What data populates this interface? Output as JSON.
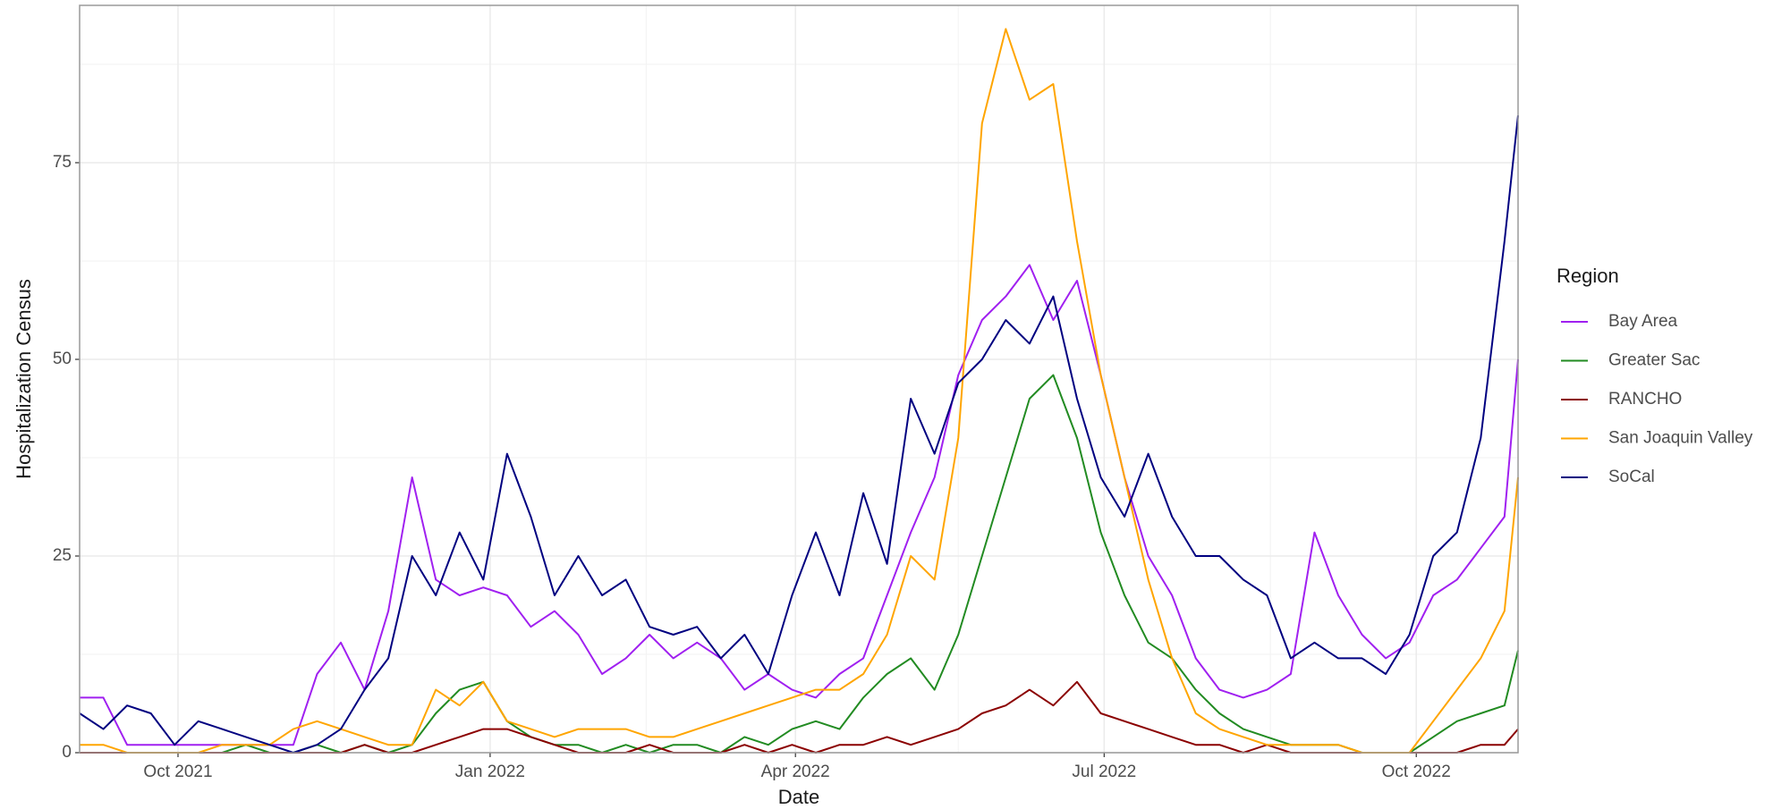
{
  "chart_data": {
    "type": "line",
    "x_label": "Date",
    "y_label": "Hospitalization Census",
    "legend_title": "Region",
    "legend": "right",
    "grid": true,
    "x": [
      "2021-09-02",
      "2021-09-09",
      "2021-09-16",
      "2021-09-23",
      "2021-09-30",
      "2021-10-07",
      "2021-10-14",
      "2021-10-21",
      "2021-10-28",
      "2021-11-04",
      "2021-11-11",
      "2021-11-18",
      "2021-11-25",
      "2021-12-02",
      "2021-12-09",
      "2021-12-16",
      "2021-12-23",
      "2021-12-30",
      "2022-01-06",
      "2022-01-13",
      "2022-01-20",
      "2022-01-27",
      "2022-02-03",
      "2022-02-10",
      "2022-02-17",
      "2022-02-24",
      "2022-03-03",
      "2022-03-10",
      "2022-03-17",
      "2022-03-24",
      "2022-03-31",
      "2022-04-07",
      "2022-04-14",
      "2022-04-21",
      "2022-04-28",
      "2022-05-05",
      "2022-05-12",
      "2022-05-19",
      "2022-05-26",
      "2022-06-02",
      "2022-06-09",
      "2022-06-16",
      "2022-06-23",
      "2022-06-30",
      "2022-07-07",
      "2022-07-14",
      "2022-07-21",
      "2022-07-28",
      "2022-08-04",
      "2022-08-11",
      "2022-08-18",
      "2022-08-25",
      "2022-09-01",
      "2022-09-08",
      "2022-09-15",
      "2022-09-22",
      "2022-09-29",
      "2022-10-06",
      "2022-10-13",
      "2022-10-20",
      "2022-10-27",
      "2022-10-31"
    ],
    "series": [
      {
        "name": "Bay Area",
        "color": "#a020f0",
        "values": [
          7,
          7,
          1,
          1,
          1,
          1,
          1,
          1,
          1,
          1,
          10,
          14,
          8,
          18,
          35,
          22,
          20,
          21,
          20,
          16,
          18,
          15,
          10,
          12,
          15,
          12,
          14,
          12,
          8,
          10,
          8,
          7,
          10,
          12,
          20,
          28,
          35,
          48,
          55,
          58,
          62,
          55,
          60,
          48,
          35,
          25,
          20,
          12,
          8,
          7,
          8,
          10,
          28,
          20,
          15,
          12,
          14,
          20,
          22,
          26,
          30,
          50
        ]
      },
      {
        "name": "Greater Sac",
        "color": "#228b22",
        "values": [
          0,
          0,
          0,
          0,
          0,
          0,
          0,
          1,
          0,
          0,
          1,
          0,
          1,
          0,
          1,
          5,
          8,
          9,
          4,
          2,
          1,
          1,
          0,
          1,
          0,
          1,
          1,
          0,
          2,
          1,
          3,
          4,
          3,
          7,
          10,
          12,
          8,
          15,
          25,
          35,
          45,
          48,
          40,
          28,
          20,
          14,
          12,
          8,
          5,
          3,
          2,
          1,
          1,
          1,
          0,
          0,
          0,
          2,
          4,
          5,
          6,
          13
        ]
      },
      {
        "name": "RANCHO",
        "color": "#8b0000",
        "values": [
          0,
          0,
          0,
          0,
          0,
          0,
          0,
          0,
          0,
          0,
          0,
          0,
          1,
          0,
          0,
          1,
          2,
          3,
          3,
          2,
          1,
          0,
          0,
          0,
          1,
          0,
          0,
          0,
          1,
          0,
          1,
          0,
          1,
          1,
          2,
          1,
          2,
          3,
          5,
          6,
          8,
          6,
          9,
          5,
          4,
          3,
          2,
          1,
          1,
          0,
          1,
          0,
          0,
          0,
          0,
          0,
          0,
          0,
          0,
          1,
          1,
          3
        ]
      },
      {
        "name": "San Joaquin Valley",
        "color": "#ffa500",
        "values": [
          1,
          1,
          0,
          0,
          0,
          0,
          1,
          1,
          1,
          3,
          4,
          3,
          2,
          1,
          1,
          8,
          6,
          9,
          4,
          3,
          2,
          3,
          3,
          3,
          2,
          2,
          3,
          4,
          5,
          6,
          7,
          8,
          8,
          10,
          15,
          25,
          22,
          40,
          80,
          92,
          83,
          85,
          65,
          48,
          35,
          22,
          12,
          5,
          3,
          2,
          1,
          1,
          1,
          1,
          0,
          0,
          0,
          4,
          8,
          12,
          18,
          35
        ]
      },
      {
        "name": "SoCal",
        "color": "#000080",
        "values": [
          5,
          3,
          6,
          5,
          1,
          4,
          3,
          2,
          1,
          0,
          1,
          3,
          8,
          12,
          25,
          20,
          28,
          22,
          38,
          30,
          20,
          25,
          20,
          22,
          16,
          15,
          16,
          12,
          15,
          10,
          20,
          28,
          20,
          33,
          24,
          45,
          38,
          47,
          50,
          55,
          52,
          58,
          45,
          35,
          30,
          38,
          30,
          25,
          25,
          22,
          20,
          12,
          14,
          12,
          12,
          10,
          15,
          25,
          28,
          40,
          65,
          81
        ]
      }
    ],
    "xlim": [
      "2021-09-02",
      "2022-10-31"
    ],
    "xticks": [
      {
        "value": "2021-10-01",
        "label": "Oct 2021"
      },
      {
        "value": "2022-01-01",
        "label": "Jan 2022"
      },
      {
        "value": "2022-04-01",
        "label": "Apr 2022"
      },
      {
        "value": "2022-07-01",
        "label": "Jul 2022"
      },
      {
        "value": "2022-10-01",
        "label": "Oct 2022"
      }
    ],
    "ylim": [
      0,
      95
    ],
    "yticks": [
      0,
      25,
      50,
      75
    ]
  }
}
